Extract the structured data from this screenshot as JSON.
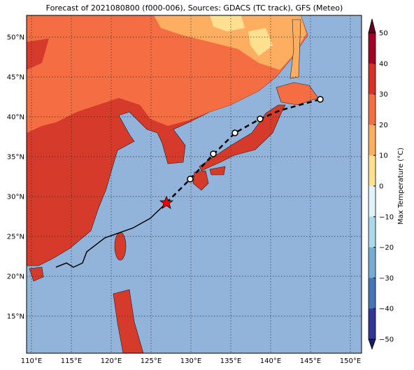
{
  "title": "Forecast of 2021080800 (f000-006), Sources: GDACS (TC track), GFS (Meteo)",
  "map": {
    "lon_labels": [
      "110°E",
      "115°E",
      "120°E",
      "125°E",
      "130°E",
      "135°E",
      "140°E",
      "145°E",
      "150°E"
    ],
    "lat_labels": [
      "50°N",
      "45°N",
      "40°N",
      "35°N",
      "30°N",
      "25°N",
      "20°N",
      "15°N"
    ]
  },
  "colorbar": {
    "label": "Max Temperature (°C)",
    "ticks": [
      "50",
      "40",
      "30",
      "20",
      "10",
      "0",
      "−10",
      "−20",
      "−30",
      "−40",
      "−50"
    ]
  }
}
